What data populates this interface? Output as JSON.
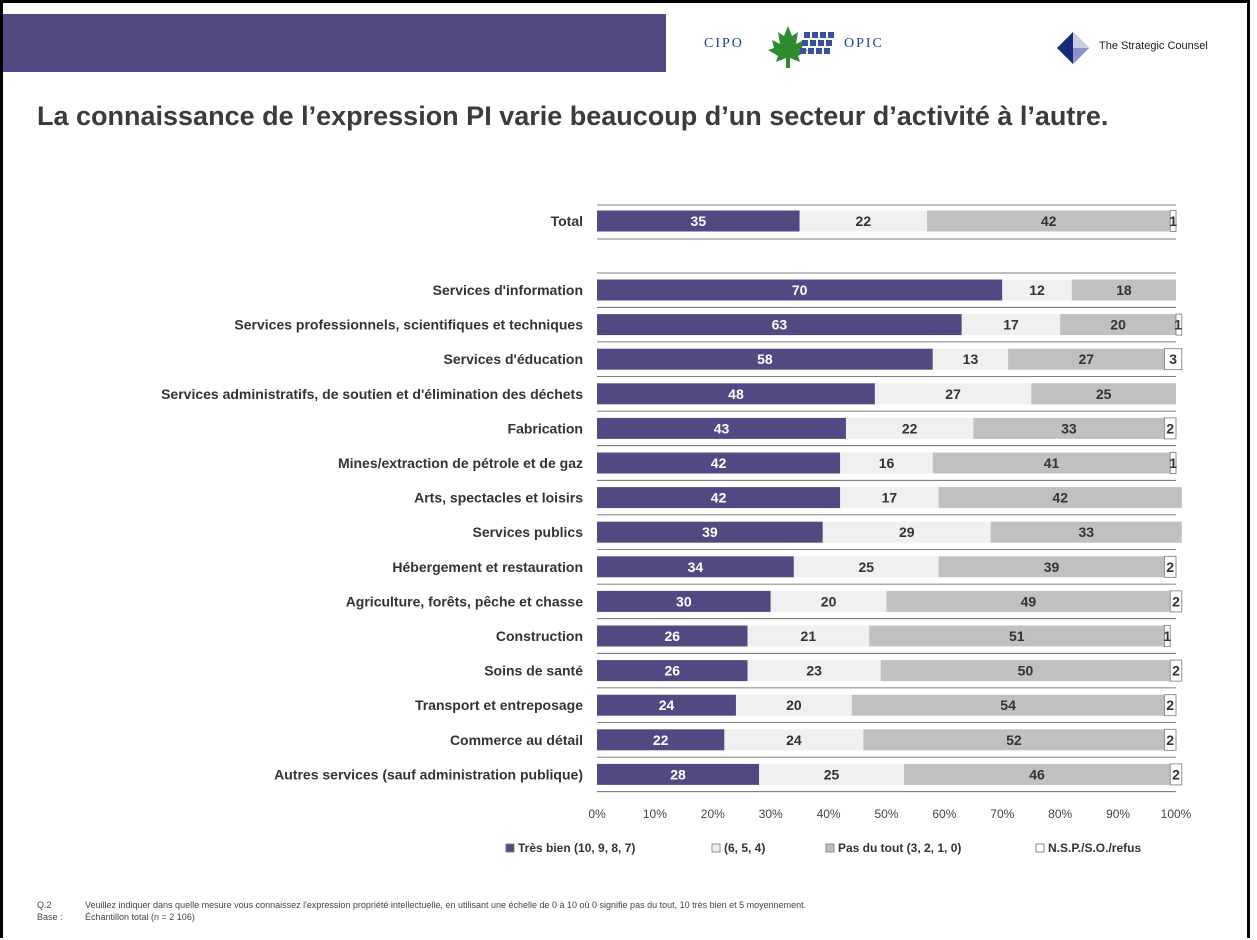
{
  "header": {
    "logo_left_1": "CIPO",
    "logo_left_2": "OPIC",
    "logo_right": "The Strategic Counsel"
  },
  "title": "La connaissance de l’expression PI varie beaucoup d’un secteur d’activité à l’autre.",
  "colors": {
    "tres_bien": "#534982",
    "moyen": "#f0f0f0",
    "pas_du_tout": "#c0c0c0",
    "nsp": "#ffffff"
  },
  "chart_data": {
    "type": "bar",
    "orientation": "horizontal",
    "stacked": true,
    "categories": [
      "Total",
      "Services d'information",
      "Services professionnels, scientifiques et techniques",
      "Services d'éducation",
      "Services administratifs, de soutien et d'élimination des déchets",
      "Fabrication",
      "Mines/extraction de pétrole et de gaz",
      "Arts, spectacles et loisirs",
      "Services publics",
      "Hébergement et restauration",
      "Agriculture, forêts, pêche et chasse",
      "Construction",
      "Soins de santé",
      "Transport et entreposage",
      "Commerce au détail",
      "Autres services (sauf administration publique)"
    ],
    "series": [
      {
        "name": "Très bien (10, 9, 8, 7)",
        "values": [
          35,
          70,
          63,
          58,
          48,
          43,
          42,
          42,
          39,
          34,
          30,
          26,
          26,
          24,
          22,
          28
        ]
      },
      {
        "name": "(6, 5, 4)",
        "values": [
          22,
          12,
          17,
          13,
          27,
          22,
          16,
          17,
          29,
          25,
          20,
          21,
          23,
          20,
          24,
          25
        ]
      },
      {
        "name": "Pas du tout (3, 2, 1, 0)",
        "values": [
          42,
          18,
          20,
          27,
          25,
          33,
          41,
          42,
          33,
          39,
          49,
          51,
          50,
          54,
          52,
          46
        ]
      },
      {
        "name": "N.S.P./S.O./refus",
        "values": [
          1,
          null,
          1,
          3,
          null,
          2,
          1,
          null,
          null,
          2,
          2,
          1,
          2,
          2,
          2,
          2
        ]
      }
    ],
    "xticks": [
      "0%",
      "10%",
      "20%",
      "30%",
      "40%",
      "50%",
      "60%",
      "70%",
      "80%",
      "90%",
      "100%"
    ],
    "xlim": [
      0,
      100
    ],
    "legend_position": "bottom"
  },
  "footnotes": [
    {
      "key": "Q.2",
      "text": "Veuillez indiquer dans quelle mesure vous connaissez l'expression propriété intellectuelle, en utilisant une échelle de 0 à 10 où 0 signifie pas du tout, 10 très bien et 5 moyennement."
    },
    {
      "key": "Base :",
      "text": "Échantillon total (n = 2 106)"
    }
  ]
}
